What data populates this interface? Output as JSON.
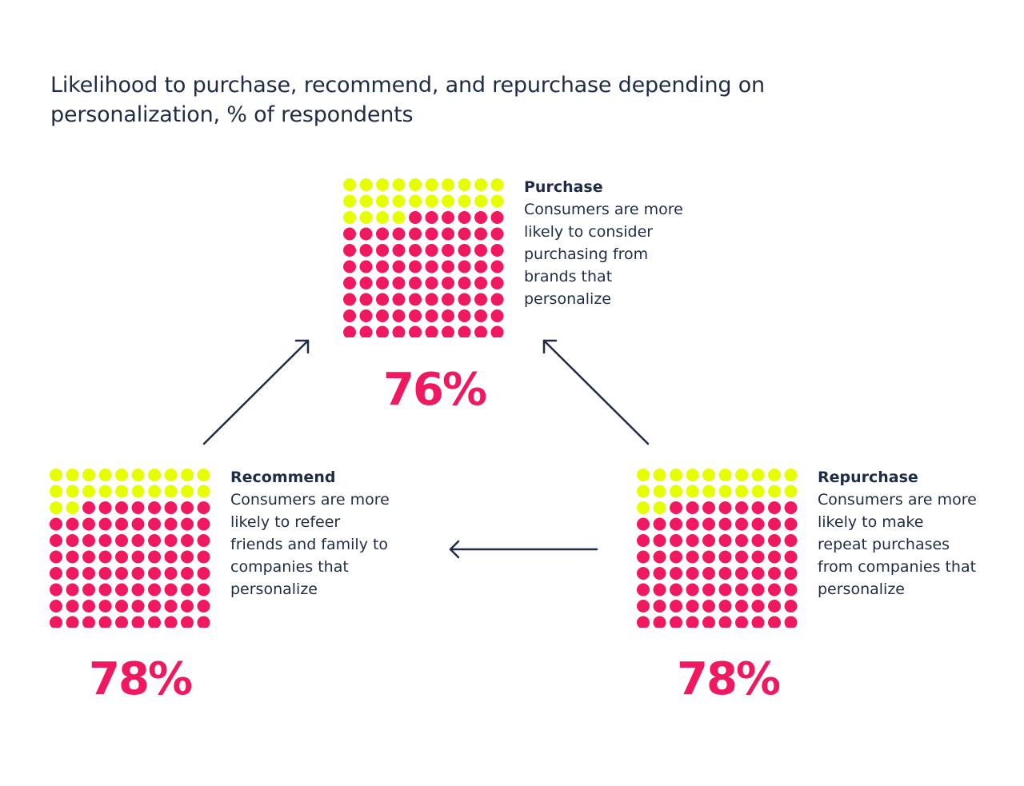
{
  "title": "Likelihood to purchase, recommend, and repurchase depending on personalization, % of respondents",
  "colors": {
    "highlight": "#e5ff00",
    "filled": "#f0185e",
    "text": "#1f2c47",
    "arrow": "#1f2c47"
  },
  "chart_data": [
    {
      "type": "waffle",
      "label": "Purchase",
      "description": "Consumers are more likely to consider purchasing from brands that personalize",
      "value": 76,
      "value_label": "76%",
      "total_dots": 100
    },
    {
      "type": "waffle",
      "label": "Recommend",
      "description": "Consumers are more likely to refeer friends and family to companies that personalize",
      "value": 78,
      "value_label": "78%",
      "total_dots": 100
    },
    {
      "type": "waffle",
      "label": "Repurchase",
      "description": "Consumers are more likely to make repeat purchases from companies that personalize",
      "value": 78,
      "value_label": "78%",
      "total_dots": 100
    }
  ]
}
